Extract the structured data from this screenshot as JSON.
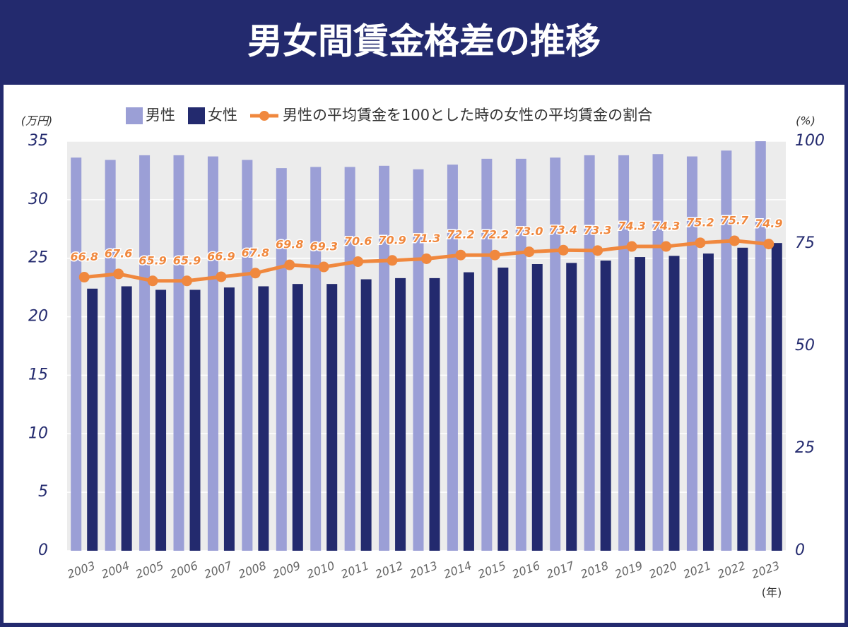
{
  "chart_data": {
    "type": "bar",
    "title": "男女間賃金格差の推移",
    "ylabel": "(万円)",
    "y2label": "(%)",
    "xlabel": "(年)",
    "categories": [
      "2003",
      "2004",
      "2005",
      "2006",
      "2007",
      "2008",
      "2009",
      "2010",
      "2011",
      "2012",
      "2013",
      "2014",
      "2015",
      "2016",
      "2017",
      "2018",
      "2019",
      "2020",
      "2021",
      "2022",
      "2023"
    ],
    "series": [
      {
        "name": "男性",
        "color": "#9b9fd6",
        "type": "bar",
        "values": [
          33.6,
          33.4,
          33.8,
          33.8,
          33.7,
          33.4,
          32.7,
          32.8,
          32.8,
          32.9,
          32.6,
          33.0,
          33.5,
          33.5,
          33.6,
          33.8,
          33.8,
          33.9,
          33.7,
          34.2,
          35.0
        ]
      },
      {
        "name": "女性",
        "color": "#232a6e",
        "type": "bar",
        "values": [
          22.4,
          22.6,
          22.3,
          22.3,
          22.5,
          22.6,
          22.8,
          22.8,
          23.2,
          23.3,
          23.3,
          23.8,
          24.2,
          24.5,
          24.6,
          24.8,
          25.1,
          25.2,
          25.4,
          25.9,
          26.3
        ]
      },
      {
        "name": "男性の平均賃金を100とした時の女性の平均賃金の割合",
        "color": "#f0883e",
        "type": "line",
        "axis": "y2",
        "values": [
          66.8,
          67.6,
          65.9,
          65.9,
          66.9,
          67.8,
          69.8,
          69.3,
          70.6,
          70.9,
          71.3,
          72.2,
          72.2,
          73.0,
          73.4,
          73.3,
          74.3,
          74.3,
          75.2,
          75.7,
          74.9
        ],
        "value_labels": [
          "66.8",
          "67.6",
          "65.9",
          "65.9",
          "66.9",
          "67.8",
          "69.8",
          "69.3",
          "70.6",
          "70.9",
          "71.3",
          "72.2",
          "72.2",
          "73.0",
          "73.4",
          "73.3",
          "74.3",
          "74.3",
          "75.2",
          "75.7",
          "74.9"
        ]
      }
    ],
    "ylim": [
      0,
      35
    ],
    "yticks": [
      0,
      5,
      10,
      15,
      20,
      25,
      30,
      35
    ],
    "y2lim": [
      0,
      100
    ],
    "y2ticks": [
      0,
      25,
      50,
      75,
      100
    ],
    "grid": true,
    "legend": "top"
  }
}
